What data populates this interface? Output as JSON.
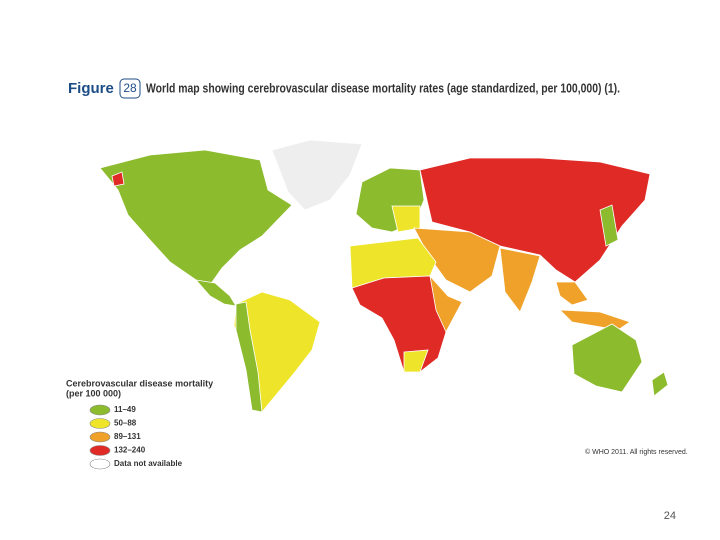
{
  "header": {
    "label": "Figure",
    "number": "28",
    "title": "World map showing cerebrovascular disease mortality rates (age standardized, per 100,000) (1)."
  },
  "legend": {
    "title": "Cerebrovascular disease mortality",
    "subtitle": "(per 100 000)",
    "items": [
      {
        "label": "11–49",
        "color": "#8dbb2e"
      },
      {
        "label": "50–88",
        "color": "#eee52a"
      },
      {
        "label": "89–131",
        "color": "#f0a12a"
      },
      {
        "label": "132–240",
        "color": "#df2a26"
      },
      {
        "label": "Data not available",
        "color": "#ffffff"
      }
    ]
  },
  "copyright": "© WHO 2011. All rights reserved.",
  "page_number": "24"
}
